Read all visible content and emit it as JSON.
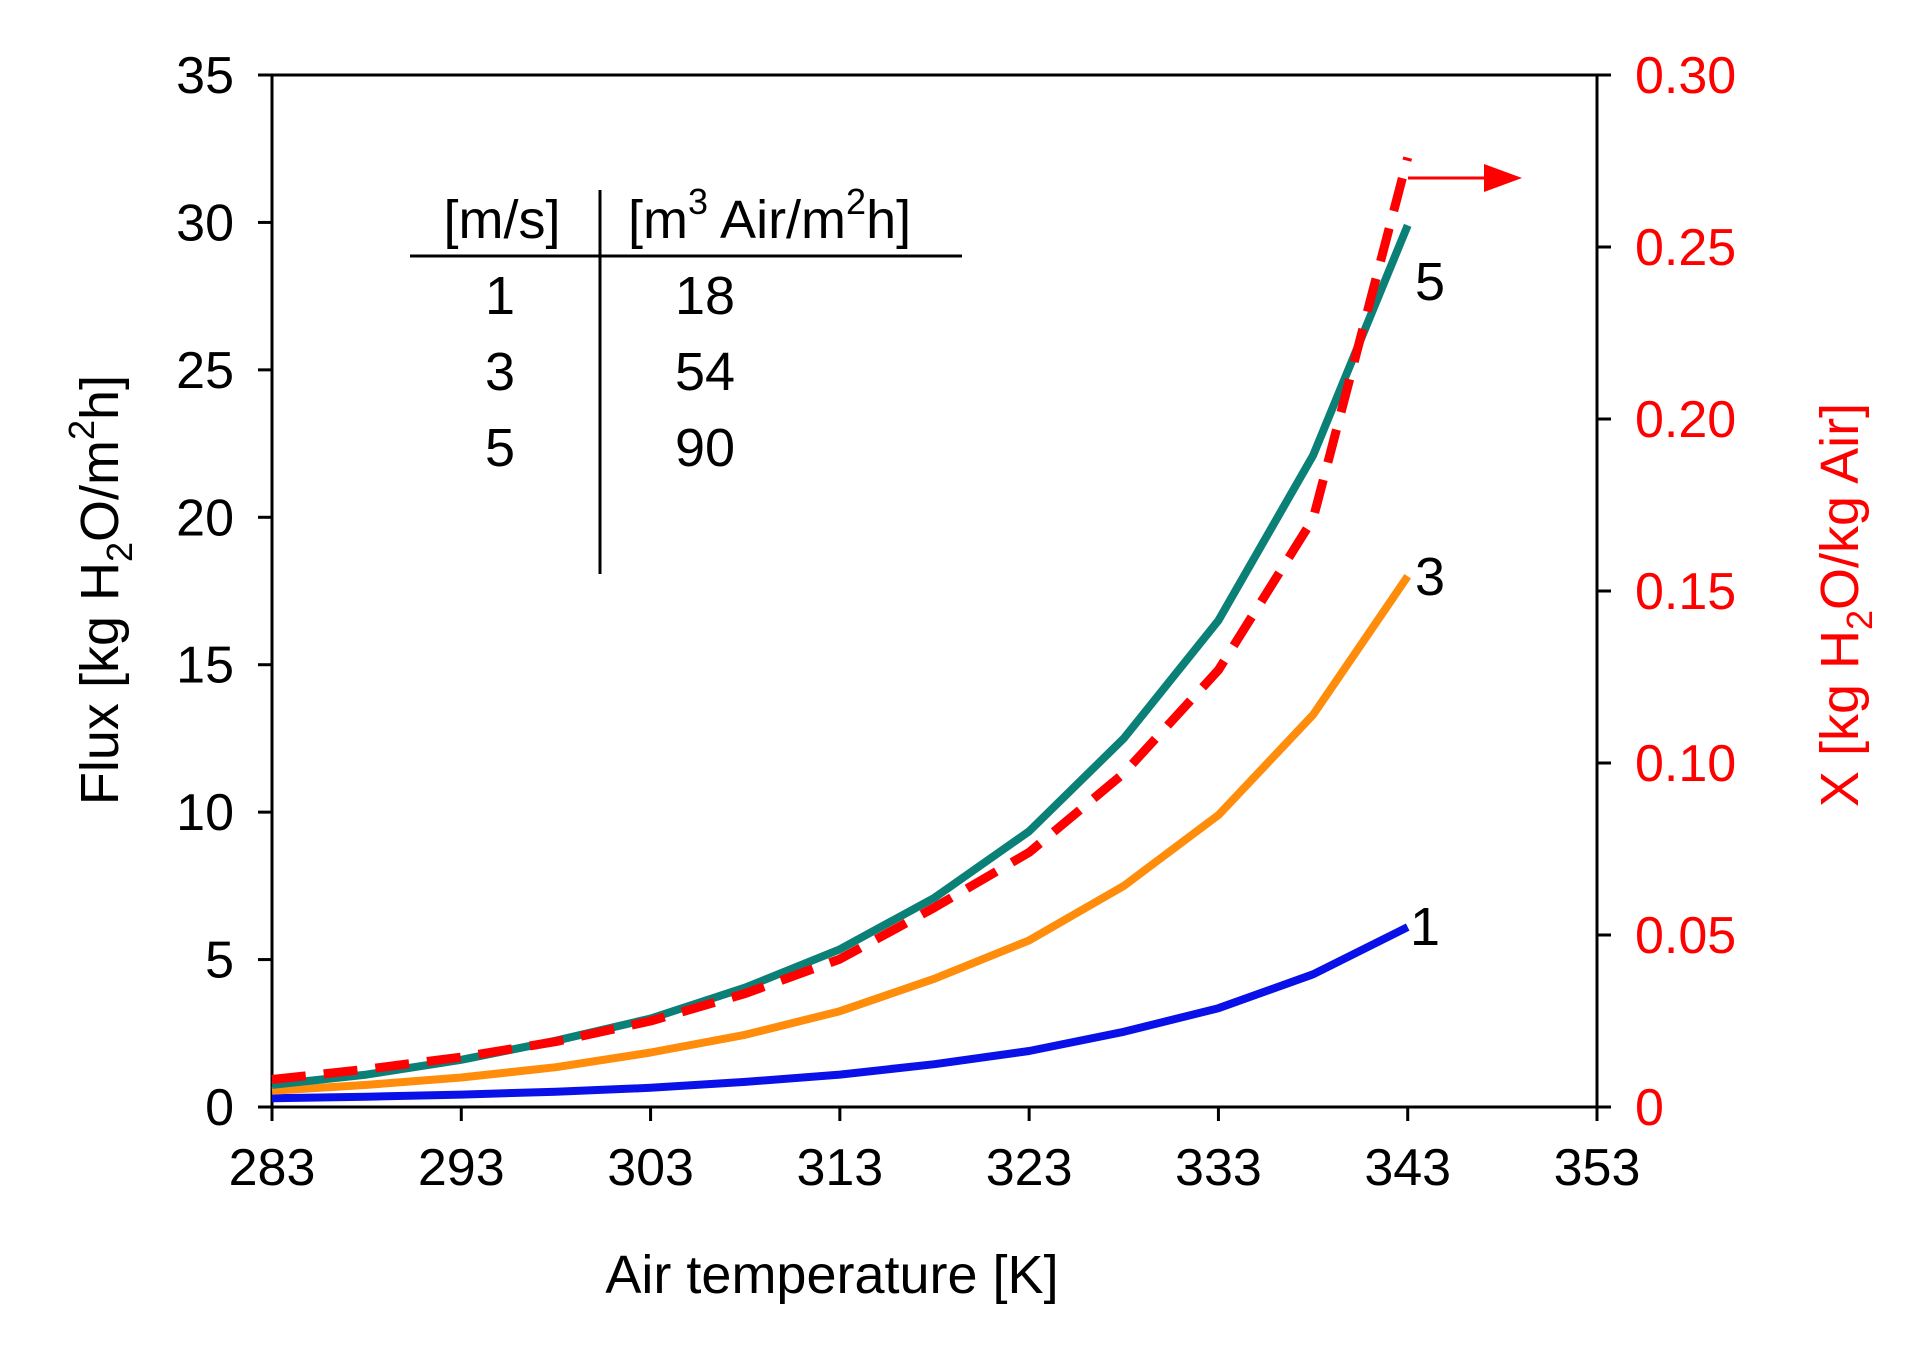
{
  "chart_data": {
    "type": "line",
    "x": [
      283,
      293,
      303,
      313,
      323,
      333,
      343
    ],
    "x_axis": {
      "label": "Air temperature [K]",
      "lim": [
        283,
        353
      ],
      "ticks": [
        283,
        293,
        303,
        313,
        323,
        333,
        343,
        353
      ],
      "tick_labels": [
        "283",
        "293",
        "303",
        "313",
        "323",
        "333",
        "343",
        "353"
      ]
    },
    "y_axis_left": {
      "label_parts": [
        "Flux [kg H",
        "2",
        "O/m",
        "2",
        "h]"
      ],
      "lim": [
        0,
        35
      ],
      "ticks": [
        0,
        5,
        10,
        15,
        20,
        25,
        30,
        35
      ],
      "tick_labels": [
        "0",
        "5",
        "10",
        "15",
        "20",
        "25",
        "30",
        "35"
      ]
    },
    "y_axis_right": {
      "label_parts": [
        "X [kg H",
        "2",
        "O/kg Air]"
      ],
      "lim": [
        0,
        0.3
      ],
      "ticks": [
        0,
        0.05,
        0.1,
        0.15,
        0.2,
        0.25,
        0.3
      ],
      "tick_labels": [
        "0",
        "0.05",
        "0.10",
        "0.15",
        "0.20",
        "0.25",
        "0.30"
      ],
      "color": "#ff0000"
    },
    "series": [
      {
        "name": "1",
        "axis": "left",
        "color": "#0a10e8",
        "dash": false,
        "x": [
          283,
          288,
          293,
          298,
          303,
          308,
          313,
          318,
          323,
          328,
          333,
          338,
          343
        ],
        "values": [
          0.3,
          0.35,
          0.42,
          0.52,
          0.65,
          0.85,
          1.1,
          1.45,
          1.9,
          2.55,
          3.35,
          4.5,
          6.1
        ]
      },
      {
        "name": "3",
        "axis": "left",
        "color": "#ff8c0a",
        "dash": false,
        "x": [
          283,
          288,
          293,
          298,
          303,
          308,
          313,
          318,
          323,
          328,
          333,
          338,
          343
        ],
        "values": [
          0.55,
          0.75,
          1.0,
          1.35,
          1.85,
          2.45,
          3.25,
          4.35,
          5.65,
          7.5,
          9.9,
          13.3,
          18.0
        ]
      },
      {
        "name": "5",
        "axis": "left",
        "color": "#0b8077",
        "dash": false,
        "x": [
          283,
          288,
          293,
          298,
          303,
          308,
          313,
          318,
          323,
          328,
          333,
          338,
          343
        ],
        "values": [
          0.75,
          1.1,
          1.6,
          2.25,
          3.0,
          4.05,
          5.35,
          7.1,
          9.35,
          12.5,
          16.5,
          22.1,
          29.9
        ]
      },
      {
        "name": "X",
        "axis": "right",
        "color": "#ff0000",
        "dash": true,
        "x": [
          283,
          288,
          293,
          298,
          303,
          308,
          313,
          318,
          323,
          328,
          333,
          338,
          343
        ],
        "values": [
          0.008,
          0.011,
          0.0145,
          0.019,
          0.025,
          0.033,
          0.043,
          0.058,
          0.074,
          0.097,
          0.127,
          0.171,
          0.276
        ]
      }
    ],
    "series_labels": [
      "1",
      "3",
      "5"
    ],
    "table": {
      "header_left": "[m/s]",
      "header_right_parts": [
        "[m",
        "3",
        " Air/m",
        "2",
        "h]"
      ],
      "rows": [
        [
          "1",
          "18"
        ],
        [
          "3",
          "54"
        ],
        [
          "5",
          "90"
        ]
      ]
    }
  }
}
